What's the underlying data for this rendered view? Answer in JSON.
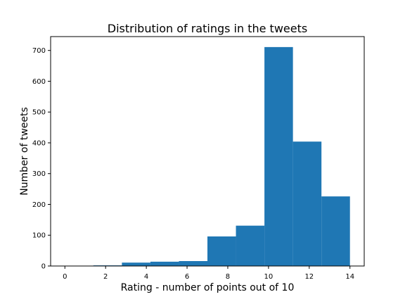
{
  "chart_data": {
    "type": "bar",
    "title": "Distribution of ratings in the tweets",
    "xlabel": "Rating - number of points out of 10",
    "ylabel": "Number of tweets",
    "xlim": [
      -0.7,
      14.7
    ],
    "ylim": [
      0,
      745
    ],
    "x_ticks": [
      0,
      2,
      4,
      6,
      8,
      10,
      12,
      14
    ],
    "y_ticks": [
      0,
      100,
      200,
      300,
      400,
      500,
      600,
      700
    ],
    "bins": [
      {
        "start": 0.0,
        "end": 1.4,
        "count": 0
      },
      {
        "start": 1.4,
        "end": 2.8,
        "count": 2
      },
      {
        "start": 2.8,
        "end": 4.2,
        "count": 11
      },
      {
        "start": 4.2,
        "end": 5.6,
        "count": 14
      },
      {
        "start": 5.6,
        "end": 7.0,
        "count": 16
      },
      {
        "start": 7.0,
        "end": 8.4,
        "count": 96
      },
      {
        "start": 8.4,
        "end": 9.8,
        "count": 131
      },
      {
        "start": 9.8,
        "end": 11.2,
        "count": 711
      },
      {
        "start": 11.2,
        "end": 12.6,
        "count": 404
      },
      {
        "start": 12.6,
        "end": 14.0,
        "count": 226
      }
    ],
    "grid": false,
    "bar_color": "#1f77b4"
  }
}
